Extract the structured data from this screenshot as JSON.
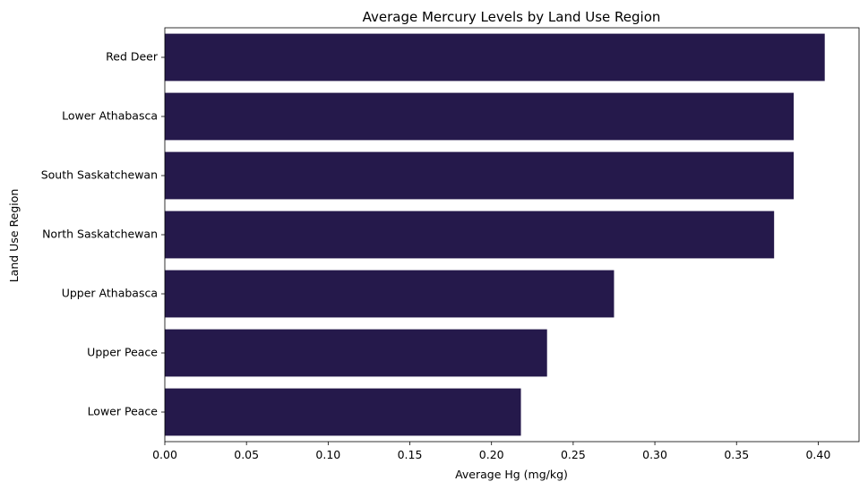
{
  "chart_data": {
    "type": "bar",
    "orientation": "horizontal",
    "title": "Average Mercury Levels by Land Use Region",
    "xlabel": "Average Hg (mg/kg)",
    "ylabel": "Land Use Region",
    "categories": [
      "Red Deer",
      "Lower Athabasca",
      "South Saskatchewan",
      "North Saskatchewan",
      "Upper Athabasca",
      "Upper Peace",
      "Lower Peace"
    ],
    "values": [
      0.404,
      0.385,
      0.385,
      0.373,
      0.275,
      0.234,
      0.218
    ],
    "xlim": [
      0,
      0.425
    ],
    "xticks": [
      0.0,
      0.05,
      0.1,
      0.15,
      0.2,
      0.25,
      0.3,
      0.35,
      0.4
    ],
    "xtick_labels": [
      "0.00",
      "0.05",
      "0.10",
      "0.15",
      "0.20",
      "0.25",
      "0.30",
      "0.35",
      "0.40"
    ],
    "bar_color": "#25194b",
    "grid": false
  }
}
